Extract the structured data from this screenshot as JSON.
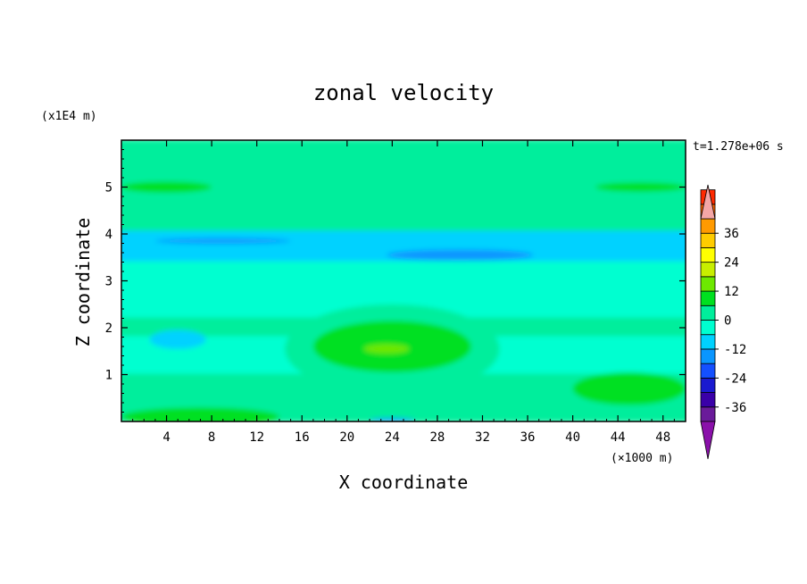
{
  "chart_data": {
    "type": "heatmap",
    "title": "zonal velocity",
    "xlabel": "X coordinate",
    "ylabel": "Z coordinate",
    "x_units": "(×1000 m)",
    "y_units": "(x1E4 m)",
    "time_label": "t=1.278e+06 s",
    "xlim": [
      0,
      50
    ],
    "ylim": [
      0,
      6
    ],
    "x_ticks": [
      4,
      8,
      12,
      16,
      20,
      24,
      28,
      32,
      36,
      40,
      44,
      48
    ],
    "y_ticks": [
      1,
      2,
      3,
      4,
      5
    ],
    "colorbar": {
      "range": [
        -42,
        42
      ],
      "step": 6,
      "tick_values": [
        36,
        24,
        12,
        0,
        -12,
        -24,
        -36
      ],
      "tick_labels": [
        "36",
        "24",
        "12",
        "0",
        "-12",
        "-24",
        "-36"
      ],
      "level_colors": [
        "#6a1b9a",
        "#3a00a8",
        "#1a1ad0",
        "#1450ff",
        "#0a96ff",
        "#00d2ff",
        "#00ffd0",
        "#00ee9c",
        "#00e020",
        "#6de800",
        "#c8ee00",
        "#ffff00",
        "#ffcc00",
        "#ff9a00",
        "#ff6400",
        "#ff2a00"
      ],
      "over_color": "#f4a6a6",
      "under_color": "#8a10aa"
    },
    "field_bands": [
      {
        "z_range": [
          5.55,
          6.0
        ],
        "value": 4
      },
      {
        "z_range": [
          5.2,
          5.55
        ],
        "value": 2
      },
      {
        "z_range": [
          4.85,
          5.2
        ],
        "value": 5
      },
      {
        "z_range": [
          4.55,
          4.85
        ],
        "value": 2
      },
      {
        "z_range": [
          4.05,
          4.55
        ],
        "value": 3
      },
      {
        "z_range": [
          3.4,
          4.05
        ],
        "value": -8
      },
      {
        "z_range": [
          2.55,
          3.4
        ],
        "value": -4
      },
      {
        "z_range": [
          2.2,
          2.55
        ],
        "value": -2
      },
      {
        "z_range": [
          1.8,
          2.2
        ],
        "value": 1
      },
      {
        "z_range": [
          1.0,
          1.8
        ],
        "value": -3
      },
      {
        "z_range": [
          0.0,
          1.0
        ],
        "value": 1
      }
    ],
    "field_features": [
      {
        "x": 24,
        "z": 1.55,
        "rx": 9.5,
        "rz": 0.95,
        "value": 3
      },
      {
        "x": 24,
        "z": 1.6,
        "rx": 7,
        "rz": 0.55,
        "value": 8
      },
      {
        "x": 23.5,
        "z": 1.55,
        "rx": 2,
        "rz": 0.1,
        "value": 12
      },
      {
        "x": 45,
        "z": 0.7,
        "rx": 5,
        "rz": 0.35,
        "value": 6
      },
      {
        "x": 45,
        "z": 0.7,
        "rx": 2.5,
        "rz": 0.18,
        "value": 9
      },
      {
        "x": 7,
        "z": 0.1,
        "rx": 7,
        "rz": 0.2,
        "value": 10
      },
      {
        "x": 4,
        "z": 5.0,
        "rx": 4,
        "rz": 0.12,
        "value": 7
      },
      {
        "x": 46,
        "z": 5.0,
        "rx": 4,
        "rz": 0.1,
        "value": 7
      },
      {
        "x": 30,
        "z": 3.55,
        "rx": 6.5,
        "rz": 0.12,
        "value": -16
      },
      {
        "x": 9,
        "z": 3.85,
        "rx": 6,
        "rz": 0.06,
        "value": -14
      },
      {
        "x": 24,
        "z": 0.03,
        "rx": 2,
        "rz": 0.04,
        "value": -14
      },
      {
        "x": 5,
        "z": 1.75,
        "rx": 2.5,
        "rz": 0.2,
        "value": -8
      }
    ]
  }
}
